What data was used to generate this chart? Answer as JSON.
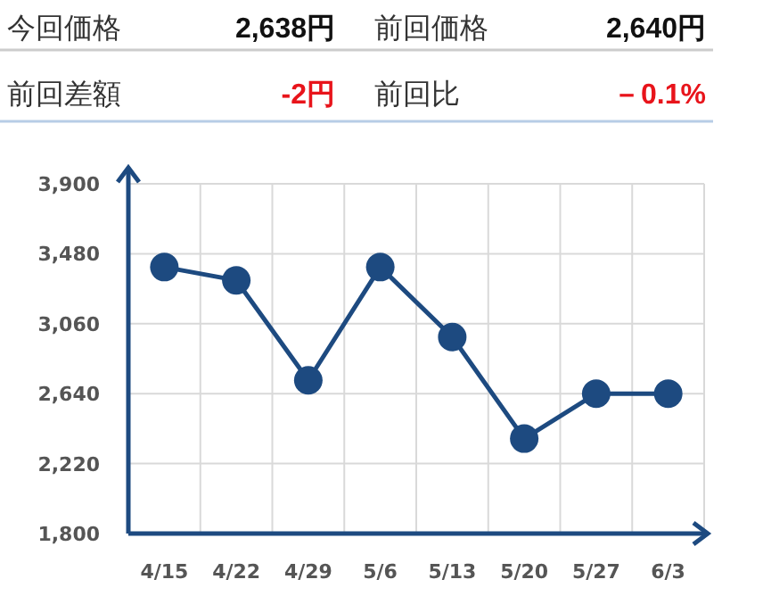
{
  "chart_data": {
    "type": "line",
    "annotations": [
      "今回価格",
      "2,638円",
      "前回価格",
      "2,640円",
      "前回差額",
      "-2円",
      "前回比",
      "－0.1%"
    ],
    "categories": [
      "4/15",
      "4/22",
      "4/29",
      "5/6",
      "5/13",
      "5/20",
      "5/27",
      "6/3"
    ],
    "series": [
      {
        "color": "#1d4a80",
        "values": [
          3400,
          3320,
          2720,
          3400,
          2980,
          2370,
          2640,
          2640
        ]
      }
    ],
    "ylim": [
      1800,
      3900
    ],
    "yticks": [
      {
        "value": 1800,
        "label": "1,800"
      },
      {
        "value": 2220,
        "label": "2,220"
      },
      {
        "value": 2640,
        "label": "2,640"
      },
      {
        "value": 3060,
        "label": "3,060"
      },
      {
        "value": 3480,
        "label": "3,480"
      },
      {
        "value": 3900,
        "label": "3,900"
      }
    ],
    "grid": true,
    "marker": "circle",
    "line_style": "solid"
  }
}
